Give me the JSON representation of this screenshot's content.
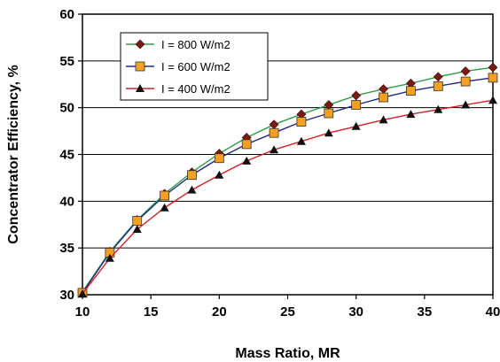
{
  "chart_data": {
    "type": "line",
    "title": "",
    "xlabel": "Mass Ratio, MR",
    "ylabel": "Concentrator Efficiency, %",
    "xlim": [
      10,
      40
    ],
    "ylim": [
      30,
      60
    ],
    "xticks": [
      10,
      15,
      20,
      25,
      30,
      35,
      40
    ],
    "yticks": [
      30,
      35,
      40,
      45,
      50,
      55,
      60
    ],
    "grid": "horizontal",
    "legend_position": "top-left",
    "x": [
      10,
      12,
      14,
      16,
      18,
      20,
      22,
      24,
      26,
      28,
      30,
      32,
      34,
      36,
      38,
      40
    ],
    "series": [
      {
        "name": "I = 800 W/m2",
        "line_color": "#2e9e4a",
        "marker": "diamond",
        "marker_fill": "#7a1a12",
        "values": [
          30.3,
          34.6,
          38.0,
          40.8,
          43.1,
          45.1,
          46.8,
          48.2,
          49.3,
          50.3,
          51.3,
          52.0,
          52.6,
          53.3,
          53.9,
          54.3
        ]
      },
      {
        "name": "I = 600 W/m2",
        "line_color": "#1e2a80",
        "marker": "square",
        "marker_fill": "#f5a020",
        "values": [
          30.2,
          34.5,
          37.9,
          40.6,
          42.8,
          44.6,
          46.1,
          47.3,
          48.5,
          49.4,
          50.3,
          51.1,
          51.8,
          52.3,
          52.8,
          53.2
        ]
      },
      {
        "name": "I = 400 W/m2",
        "line_color": "#d0222a",
        "marker": "triangle",
        "marker_fill": "#111111",
        "values": [
          30.1,
          33.9,
          37.0,
          39.3,
          41.2,
          42.8,
          44.3,
          45.5,
          46.4,
          47.3,
          48.0,
          48.7,
          49.3,
          49.8,
          50.3,
          50.8
        ]
      }
    ]
  }
}
